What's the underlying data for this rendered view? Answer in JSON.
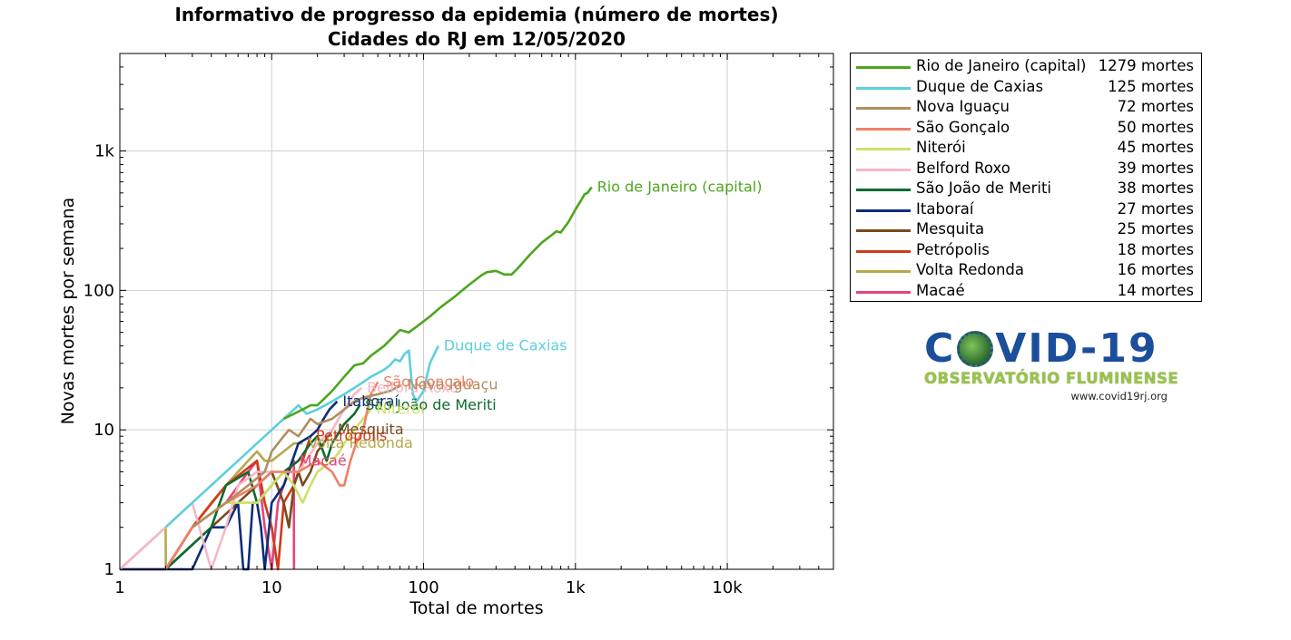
{
  "chart_data": {
    "type": "line",
    "title": [
      "Informativo de progresso da epidemia (número de mortes)",
      "Cidades do RJ em 12/05/2020"
    ],
    "xlabel": "Total de mortes",
    "ylabel": "Novas mortes por semana",
    "xscale": "log",
    "yscale": "log",
    "xlim": [
      1,
      50000
    ],
    "ylim": [
      1,
      5000
    ],
    "grid": true,
    "legend_position": "outside-right",
    "xticks": [
      {
        "value": 1,
        "label": "1"
      },
      {
        "value": 10,
        "label": "10"
      },
      {
        "value": 100,
        "label": "100"
      },
      {
        "value": 1000,
        "label": "1k"
      },
      {
        "value": 10000,
        "label": "10k"
      }
    ],
    "yticks": [
      {
        "value": 1,
        "label": "1"
      },
      {
        "value": 10,
        "label": "10"
      },
      {
        "value": 100,
        "label": "100"
      },
      {
        "value": 1000,
        "label": "1k"
      }
    ],
    "series": [
      {
        "name": "Rio de Janeiro (capital)",
        "count": "1279 mortes",
        "color": "#4da61d",
        "label_point": [
          1279,
          550
        ],
        "points": [
          [
            12,
            12
          ],
          [
            14,
            13
          ],
          [
            16,
            14
          ],
          [
            18,
            15
          ],
          [
            20,
            15
          ],
          [
            25,
            19
          ],
          [
            30,
            24
          ],
          [
            35,
            29
          ],
          [
            40,
            30
          ],
          [
            45,
            34
          ],
          [
            55,
            40
          ],
          [
            65,
            48
          ],
          [
            70,
            52
          ],
          [
            80,
            50
          ],
          [
            90,
            55
          ],
          [
            110,
            65
          ],
          [
            130,
            76
          ],
          [
            160,
            90
          ],
          [
            180,
            100
          ],
          [
            200,
            110
          ],
          [
            240,
            128
          ],
          [
            260,
            135
          ],
          [
            300,
            138
          ],
          [
            340,
            130
          ],
          [
            380,
            130
          ],
          [
            420,
            145
          ],
          [
            500,
            180
          ],
          [
            600,
            220
          ],
          [
            700,
            250
          ],
          [
            750,
            265
          ],
          [
            800,
            260
          ],
          [
            900,
            310
          ],
          [
            1000,
            380
          ],
          [
            1100,
            450
          ],
          [
            1150,
            490
          ],
          [
            1200,
            500
          ],
          [
            1279,
            550
          ]
        ]
      },
      {
        "name": "Duque de Caxias",
        "count": "125 mortes",
        "color": "#5fcfdc",
        "label_point": [
          125,
          40
        ],
        "points": [
          [
            2,
            2
          ],
          [
            3,
            3
          ],
          [
            5,
            5
          ],
          [
            8,
            8
          ],
          [
            10,
            10
          ],
          [
            12,
            12
          ],
          [
            14,
            14
          ],
          [
            15,
            15
          ],
          [
            17,
            13
          ],
          [
            20,
            14
          ],
          [
            25,
            16
          ],
          [
            30,
            18
          ],
          [
            35,
            20
          ],
          [
            40,
            22
          ],
          [
            45,
            24
          ],
          [
            55,
            27
          ],
          [
            60,
            29
          ],
          [
            65,
            32
          ],
          [
            70,
            31
          ],
          [
            75,
            35
          ],
          [
            80,
            37
          ],
          [
            85,
            18
          ],
          [
            90,
            16
          ],
          [
            100,
            19
          ],
          [
            110,
            30
          ],
          [
            125,
            40
          ]
        ]
      },
      {
        "name": "Nova Iguaçu",
        "count": "72 mortes",
        "color": "#b08f5e",
        "label_point": [
          72,
          21
        ],
        "points": [
          [
            3,
            2
          ],
          [
            5,
            3
          ],
          [
            7,
            4
          ],
          [
            9,
            5
          ],
          [
            10,
            7
          ],
          [
            12,
            9
          ],
          [
            13,
            10
          ],
          [
            15,
            9
          ],
          [
            18,
            12
          ],
          [
            20,
            11
          ],
          [
            25,
            12
          ],
          [
            30,
            14
          ],
          [
            35,
            16
          ],
          [
            40,
            17
          ],
          [
            50,
            18
          ],
          [
            60,
            19
          ],
          [
            72,
            21
          ]
        ]
      },
      {
        "name": "São Gonçalo",
        "count": "50 mortes",
        "color": "#f08068",
        "label_point": [
          50,
          22
        ],
        "points": [
          [
            2,
            1
          ],
          [
            3,
            2
          ],
          [
            5,
            3
          ],
          [
            8,
            4
          ],
          [
            10,
            5
          ],
          [
            15,
            5
          ],
          [
            20,
            6
          ],
          [
            25,
            5
          ],
          [
            28,
            4
          ],
          [
            30,
            4
          ],
          [
            33,
            6
          ],
          [
            36,
            8
          ],
          [
            40,
            10
          ],
          [
            45,
            18
          ],
          [
            50,
            22
          ]
        ]
      },
      {
        "name": "Niterói",
        "count": "45 mortes",
        "color": "#cfe06a",
        "label_point": [
          45,
          14
        ],
        "points": [
          [
            3,
            2
          ],
          [
            5,
            3
          ],
          [
            8,
            3
          ],
          [
            10,
            4
          ],
          [
            12,
            5
          ],
          [
            14,
            4
          ],
          [
            16,
            3
          ],
          [
            18,
            4
          ],
          [
            20,
            5
          ],
          [
            25,
            6
          ],
          [
            28,
            7
          ],
          [
            30,
            8
          ],
          [
            35,
            10
          ],
          [
            40,
            12
          ],
          [
            45,
            14
          ]
        ]
      },
      {
        "name": "Belford Roxo",
        "count": "39 mortes",
        "color": "#f5b8c8",
        "label_point": [
          39,
          20
        ],
        "points": [
          [
            1,
            1
          ],
          [
            2,
            2
          ],
          [
            3,
            3
          ],
          [
            4,
            1
          ],
          [
            5,
            2
          ],
          [
            6,
            4
          ],
          [
            8,
            5
          ],
          [
            10,
            5
          ],
          [
            15,
            5
          ],
          [
            20,
            8
          ],
          [
            25,
            10
          ],
          [
            30,
            14
          ],
          [
            35,
            18
          ],
          [
            39,
            20
          ]
        ]
      },
      {
        "name": "São João de Meriti",
        "count": "38 mortes",
        "color": "#0f6b2e",
        "label_point": [
          38,
          15
        ],
        "points": [
          [
            2,
            1
          ],
          [
            4,
            2
          ],
          [
            5,
            4
          ],
          [
            7,
            5
          ],
          [
            8,
            3
          ],
          [
            10,
            4
          ],
          [
            12,
            5
          ],
          [
            15,
            6
          ],
          [
            18,
            8
          ],
          [
            20,
            9
          ],
          [
            23,
            6
          ],
          [
            25,
            8
          ],
          [
            30,
            11
          ],
          [
            35,
            13
          ],
          [
            38,
            15
          ]
        ]
      },
      {
        "name": "Itaboraí",
        "count": "27 mortes",
        "color": "#0c2e7a",
        "label_point": [
          27,
          16
        ],
        "points": [
          [
            1,
            1
          ],
          [
            2,
            1
          ],
          [
            3,
            1
          ],
          [
            4,
            2
          ],
          [
            5,
            2
          ],
          [
            6,
            3
          ],
          [
            6.5,
            1
          ],
          [
            7,
            1
          ],
          [
            7.5,
            3
          ],
          [
            8,
            3
          ],
          [
            8.5,
            2
          ],
          [
            9,
            1
          ],
          [
            10,
            3
          ],
          [
            12,
            4
          ],
          [
            15,
            8
          ],
          [
            18,
            9
          ],
          [
            20,
            10
          ],
          [
            22,
            12
          ],
          [
            24,
            14
          ],
          [
            27,
            16
          ]
        ]
      },
      {
        "name": "Mesquita",
        "count": "25 mortes",
        "color": "#7a4a1e",
        "label_point": [
          25,
          10
        ],
        "points": [
          [
            2,
            1
          ],
          [
            4,
            2
          ],
          [
            6,
            3
          ],
          [
            8,
            4
          ],
          [
            10,
            5
          ],
          [
            12,
            3
          ],
          [
            13,
            2
          ],
          [
            14,
            4
          ],
          [
            15,
            5
          ],
          [
            16,
            4
          ],
          [
            18,
            5
          ],
          [
            20,
            7
          ],
          [
            22,
            8
          ],
          [
            25,
            10
          ]
        ]
      },
      {
        "name": "Petrópolis",
        "count": "18 mortes",
        "color": "#d03a1a",
        "label_point": [
          18,
          9
        ],
        "points": [
          [
            1,
            1
          ],
          [
            2,
            1
          ],
          [
            3,
            2
          ],
          [
            5,
            4
          ],
          [
            8,
            6
          ],
          [
            9,
            3
          ],
          [
            10,
            2
          ],
          [
            11,
            1
          ],
          [
            12,
            3
          ],
          [
            14,
            4
          ],
          [
            16,
            6
          ],
          [
            18,
            9
          ]
        ]
      },
      {
        "name": "Volta Redonda",
        "count": "16 mortes",
        "color": "#b7a84a",
        "label_point": [
          16,
          8
        ],
        "points": [
          [
            1,
            1
          ],
          [
            2,
            2
          ],
          [
            2.01,
            1
          ],
          [
            3,
            2
          ],
          [
            4,
            3
          ],
          [
            5,
            4
          ],
          [
            6,
            5
          ],
          [
            7,
            6
          ],
          [
            8,
            7
          ],
          [
            9,
            6
          ],
          [
            10,
            6
          ],
          [
            12,
            7
          ],
          [
            14,
            8
          ],
          [
            16,
            8
          ]
        ]
      },
      {
        "name": "Macaé",
        "count": "14 mortes",
        "color": "#e0467a",
        "label_point": [
          14,
          6
        ],
        "points": [
          [
            2,
            1
          ],
          [
            3,
            2
          ],
          [
            5,
            3
          ],
          [
            7,
            5
          ],
          [
            8,
            6
          ],
          [
            9,
            2
          ],
          [
            10,
            1
          ],
          [
            11,
            3
          ],
          [
            12,
            4
          ],
          [
            13,
            5
          ],
          [
            14,
            6
          ],
          [
            14.01,
            1
          ]
        ]
      }
    ]
  },
  "logo": {
    "title_left": "C",
    "title_right": "VID-19",
    "subtitle": "OBSERVATÓRIO FLUMINENSE",
    "url": "www.covid19rj.org"
  }
}
